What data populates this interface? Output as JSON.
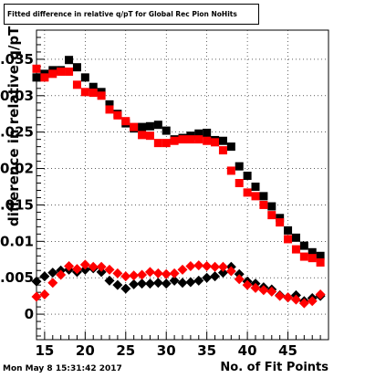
{
  "chart_data": {
    "type": "scatter",
    "title": "Fitted difference in relative q/pT for Global Rec Pion NoHits",
    "xlabel": "No. of Fit Points",
    "ylabel": "difference in relative q/pT",
    "xlim": [
      14,
      50
    ],
    "ylim": [
      -0.0035,
      0.039
    ],
    "x_ticks": [
      15,
      20,
      25,
      30,
      35,
      40,
      45
    ],
    "y_ticks": [
      0,
      0.005,
      0.01,
      0.015,
      0.02,
      0.025,
      0.03,
      0.035
    ],
    "y_tick_labels": [
      "0",
      "0.005",
      "0.01",
      "0.015",
      "0.02",
      "0.025",
      "0.03",
      "0.035"
    ],
    "grid": true,
    "x": [
      14,
      15,
      16,
      17,
      18,
      19,
      20,
      21,
      22,
      23,
      24,
      25,
      26,
      27,
      28,
      29,
      30,
      31,
      32,
      33,
      34,
      35,
      36,
      37,
      38,
      39,
      40,
      41,
      42,
      43,
      44,
      45,
      46,
      47,
      48,
      49
    ],
    "series": [
      {
        "marker": "square",
        "color": "#000000",
        "values": [
          0.0325,
          0.033,
          0.0335,
          0.0335,
          0.0349,
          0.0339,
          0.0325,
          0.0312,
          0.0305,
          0.0288,
          0.0275,
          0.0262,
          0.0255,
          0.0257,
          0.0258,
          0.026,
          0.0252,
          0.024,
          0.0242,
          0.0245,
          0.0248,
          0.0249,
          0.0239,
          0.0238,
          0.023,
          0.0203,
          0.019,
          0.0175,
          0.0162,
          0.0148,
          0.0132,
          0.0115,
          0.0105,
          0.0094,
          0.0085,
          0.008
        ]
      },
      {
        "marker": "square",
        "color": "#ff0000",
        "values": [
          0.0337,
          0.0325,
          0.033,
          0.0333,
          0.0333,
          0.0315,
          0.0305,
          0.0304,
          0.03,
          0.0281,
          0.0273,
          0.0265,
          0.0257,
          0.0246,
          0.0245,
          0.0235,
          0.0235,
          0.0238,
          0.024,
          0.024,
          0.024,
          0.0238,
          0.0236,
          0.0225,
          0.0197,
          0.018,
          0.0167,
          0.0162,
          0.015,
          0.0136,
          0.0126,
          0.0103,
          0.0089,
          0.0079,
          0.0077,
          0.0071
        ]
      },
      {
        "marker": "diamond",
        "color": "#000000",
        "values": [
          0.0045,
          0.0052,
          0.0057,
          0.006,
          0.0061,
          0.0058,
          0.0061,
          0.0063,
          0.0058,
          0.0046,
          0.004,
          0.0035,
          0.0041,
          0.0042,
          0.0042,
          0.0043,
          0.0042,
          0.0046,
          0.0043,
          0.0044,
          0.0046,
          0.005,
          0.0052,
          0.0057,
          0.0065,
          0.0055,
          0.0045,
          0.0042,
          0.0037,
          0.0034,
          0.0026,
          0.0023,
          0.0026,
          0.0018,
          0.0022,
          0.0025
        ]
      },
      {
        "marker": "diamond",
        "color": "#ff0000",
        "values": [
          0.0024,
          0.0027,
          0.0043,
          0.0054,
          0.0066,
          0.0062,
          0.0068,
          0.0065,
          0.0065,
          0.0061,
          0.0056,
          0.0052,
          0.0053,
          0.0054,
          0.0058,
          0.0056,
          0.0055,
          0.0056,
          0.0061,
          0.0066,
          0.0067,
          0.0066,
          0.0065,
          0.0065,
          0.0059,
          0.0048,
          0.004,
          0.0036,
          0.0033,
          0.0031,
          0.0025,
          0.0023,
          0.002,
          0.0015,
          0.0018,
          0.0027
        ]
      }
    ]
  },
  "footer": {
    "datestamp": "Mon May  8 15:31:42 2017"
  }
}
